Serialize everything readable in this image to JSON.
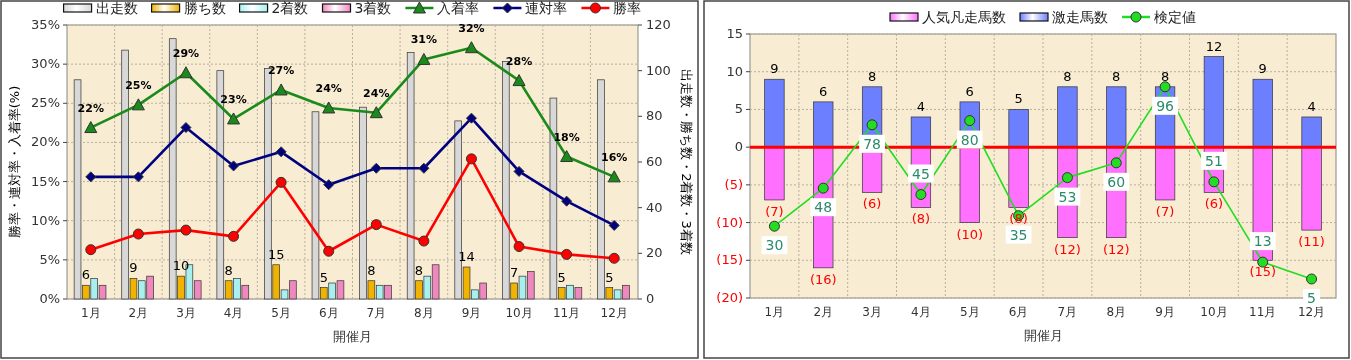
{
  "chart_data": [
    {
      "type": "bar",
      "categories": [
        "1月",
        "2月",
        "3月",
        "4月",
        "5月",
        "6月",
        "7月",
        "8月",
        "9月",
        "10月",
        "11月",
        "12月"
      ],
      "xlabel": "開催月",
      "ylabel": "勝率・連対率・入着率(%)",
      "y2label": "出走数・勝ち数・2着数・3着数",
      "ylim": [
        0,
        35
      ],
      "yticks": [
        {
          "value": 0,
          "label": "0%"
        },
        {
          "value": 5,
          "label": "5%"
        },
        {
          "value": 10,
          "label": "10%"
        },
        {
          "value": 15,
          "label": "15%"
        },
        {
          "value": 20,
          "label": "20%"
        },
        {
          "value": 25,
          "label": "25%"
        },
        {
          "value": 30,
          "label": "30%"
        },
        {
          "value": 35,
          "label": "35%"
        }
      ],
      "y2lim": [
        0,
        120
      ],
      "y2ticks": [
        0,
        20,
        40,
        60,
        80,
        100,
        120
      ],
      "grid": true,
      "legend": "top",
      "series": [
        {
          "name": "出走数",
          "axis": "y2",
          "color": "#d8d8d8",
          "values": [
            96,
            109,
            114,
            100,
            101,
            82,
            84,
            108,
            78,
            104,
            88,
            96
          ]
        },
        {
          "name": "勝ち数",
          "axis": "y2",
          "color": "#f0b400",
          "values": [
            6,
            9,
            10,
            8,
            15,
            5,
            8,
            8,
            14,
            7,
            5,
            5
          ],
          "value_labels": [
            "6",
            "9",
            "10",
            "8",
            "15",
            "5",
            "8",
            "8",
            "14",
            "7",
            "5",
            "5"
          ]
        },
        {
          "name": "2着数",
          "axis": "y2",
          "color": "#a8f0f0",
          "values": [
            9,
            8,
            15,
            9,
            4,
            7,
            6,
            10,
            4,
            10,
            6,
            4
          ]
        },
        {
          "name": "3着数",
          "axis": "y2",
          "color": "#f088c0",
          "values": [
            6,
            10,
            8,
            6,
            8,
            8,
            6,
            15,
            7,
            12,
            5,
            6
          ]
        },
        {
          "name": "入着率",
          "type": "line",
          "axis": "y",
          "color": "#1a8a1a",
          "marker": "triangle",
          "values": [
            21.9,
            24.8,
            28.9,
            23.0,
            26.7,
            24.4,
            23.8,
            30.6,
            32.1,
            27.9,
            18.2,
            15.6
          ],
          "value_labels": [
            "22%",
            "25%",
            "29%",
            "23%",
            "27%",
            "24%",
            "24%",
            "31%",
            "32%",
            "28%",
            "18%",
            "16%"
          ]
        },
        {
          "name": "連対率",
          "type": "line",
          "axis": "y",
          "color": "#000080",
          "marker": "diamond",
          "values": [
            15.6,
            15.6,
            21.9,
            17.0,
            18.8,
            14.6,
            16.7,
            16.7,
            23.1,
            16.3,
            12.5,
            9.4
          ]
        },
        {
          "name": "勝率",
          "type": "line",
          "axis": "y",
          "color": "#ff0000",
          "marker": "circle",
          "values": [
            6.3,
            8.3,
            8.8,
            8.0,
            14.9,
            6.1,
            9.5,
            7.4,
            17.9,
            6.7,
            5.7,
            5.2
          ]
        }
      ]
    },
    {
      "type": "bar",
      "stacked": true,
      "categories": [
        "1月",
        "2月",
        "3月",
        "4月",
        "5月",
        "6月",
        "7月",
        "8月",
        "9月",
        "10月",
        "11月",
        "12月"
      ],
      "xlabel": "開催月",
      "ylim": [
        -20,
        15
      ],
      "yticks": [
        {
          "value": -20,
          "label": "(20)"
        },
        {
          "value": -15,
          "label": "(15)"
        },
        {
          "value": -10,
          "label": "(10)"
        },
        {
          "value": -5,
          "label": "(5)"
        },
        0,
        5,
        10,
        15
      ],
      "y2lim": [
        -4,
        121
      ],
      "tick_labels": "xy",
      "grid": true,
      "legend": "top",
      "ref_lines": [
        {
          "axis": "y",
          "value": 0,
          "color": "#ff0000"
        }
      ],
      "series": [
        {
          "name": "人気凡走馬数",
          "axis": "y",
          "color": "#ff70ff",
          "values": [
            -7,
            -16,
            -6,
            -8,
            -10,
            -8,
            -12,
            -12,
            -7,
            -6,
            -15,
            -11
          ],
          "value_labels": [
            "(7)",
            "(16)",
            "(6)",
            "(8)",
            "(10)",
            "(8)",
            "(12)",
            "(12)",
            "(7)",
            "(6)",
            "(15)",
            "(11)"
          ]
        },
        {
          "name": "激走馬数",
          "axis": "y",
          "color": "#6c80ff",
          "values": [
            9,
            6,
            8,
            4,
            6,
            5,
            8,
            8,
            8,
            12,
            9,
            4
          ],
          "value_labels": [
            "9",
            "6",
            "8",
            "4",
            "6",
            "5",
            "8",
            "8",
            "8",
            "12",
            "9",
            "4"
          ]
        },
        {
          "name": "検定値",
          "type": "line",
          "axis": "y2",
          "color": "#22dd22",
          "marker": "circle",
          "values": [
            30,
            48,
            78,
            45,
            80,
            35,
            53,
            60,
            96,
            51,
            13,
            5
          ],
          "value_labels": [
            "30",
            "48",
            "78",
            "45",
            "80",
            "35",
            "53",
            "60",
            "96",
            "51",
            "13",
            "5"
          ]
        }
      ]
    }
  ]
}
